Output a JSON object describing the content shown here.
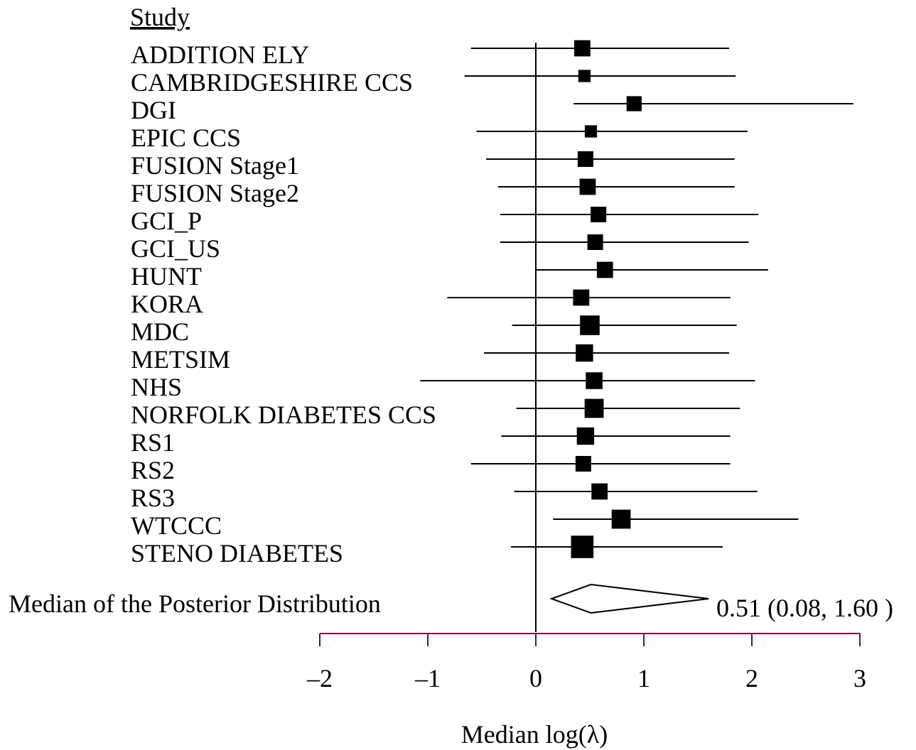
{
  "chart_data": {
    "type": "forest",
    "title": "",
    "column_header": "Study",
    "xlabel": "Median log(λ)",
    "xlim": [
      -2,
      3
    ],
    "xticks": [
      -2,
      -1,
      0,
      1,
      2,
      3
    ],
    "xtick_labels": [
      "–2",
      "–1",
      "0",
      "1",
      "2",
      "3"
    ],
    "reference_line": 0,
    "studies": [
      {
        "name": "ADDITION ELY",
        "estimate": 0.43,
        "lower": -0.6,
        "upper": 1.79,
        "weight": 0.8
      },
      {
        "name": "CAMBRIDGESHIRE CCS",
        "estimate": 0.45,
        "lower": -0.66,
        "upper": 1.85,
        "weight": 0.45
      },
      {
        "name": "DGI",
        "estimate": 0.91,
        "lower": 0.35,
        "upper": 2.94,
        "weight": 0.7
      },
      {
        "name": "EPIC CCS",
        "estimate": 0.51,
        "lower": -0.55,
        "upper": 1.96,
        "weight": 0.45
      },
      {
        "name": "FUSION Stage1",
        "estimate": 0.46,
        "lower": -0.46,
        "upper": 1.84,
        "weight": 0.75
      },
      {
        "name": "FUSION Stage2",
        "estimate": 0.48,
        "lower": -0.35,
        "upper": 1.84,
        "weight": 0.8
      },
      {
        "name": "GCI_P",
        "estimate": 0.58,
        "lower": -0.33,
        "upper": 2.06,
        "weight": 0.75
      },
      {
        "name": "GCI_US",
        "estimate": 0.55,
        "lower": -0.33,
        "upper": 1.97,
        "weight": 0.75
      },
      {
        "name": "HUNT",
        "estimate": 0.64,
        "lower": 0.0,
        "upper": 2.15,
        "weight": 0.8
      },
      {
        "name": "KORA",
        "estimate": 0.42,
        "lower": -0.82,
        "upper": 1.8,
        "weight": 0.8
      },
      {
        "name": "MDC",
        "estimate": 0.5,
        "lower": -0.22,
        "upper": 1.86,
        "weight": 1.1
      },
      {
        "name": "METSIM",
        "estimate": 0.45,
        "lower": -0.48,
        "upper": 1.79,
        "weight": 0.9
      },
      {
        "name": "NHS",
        "estimate": 0.54,
        "lower": -1.07,
        "upper": 2.03,
        "weight": 0.85
      },
      {
        "name": "NORFOLK DIABETES CCS",
        "estimate": 0.54,
        "lower": -0.18,
        "upper": 1.89,
        "weight": 1.05
      },
      {
        "name": "RS1",
        "estimate": 0.46,
        "lower": -0.32,
        "upper": 1.8,
        "weight": 0.9
      },
      {
        "name": "RS2",
        "estimate": 0.44,
        "lower": -0.6,
        "upper": 1.8,
        "weight": 0.75
      },
      {
        "name": "RS3",
        "estimate": 0.59,
        "lower": -0.2,
        "upper": 2.05,
        "weight": 0.8
      },
      {
        "name": "WTCCC",
        "estimate": 0.79,
        "lower": 0.16,
        "upper": 2.43,
        "weight": 1.05
      },
      {
        "name": "STENO DIABETES",
        "estimate": 0.43,
        "lower": -0.23,
        "upper": 1.73,
        "weight": 1.35
      }
    ],
    "summary": {
      "label": "Median of the Posterior Distribution",
      "estimate": 0.51,
      "lower": 0.08,
      "upper": 1.6,
      "text": "0.51 (0.08, 1.60 )"
    },
    "colors": {
      "marks": "#000000",
      "axis": "#800040"
    }
  }
}
